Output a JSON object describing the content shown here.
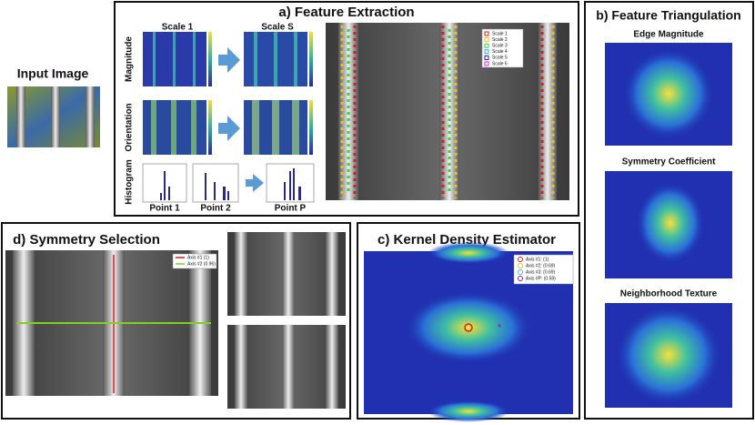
{
  "input": {
    "title": "Input Image"
  },
  "panel_a": {
    "title": "a) Feature Extraction",
    "columns": [
      "Scale 1",
      "Scale S"
    ],
    "rows": [
      "Magnitude",
      "Orientation",
      "Histogram"
    ],
    "points": [
      "Point 1",
      "Point 2",
      "Point P"
    ],
    "legend": [
      "Scale 1",
      "Scale 2",
      "Scale 3",
      "Scale 4",
      "Scale 5",
      "Scale 6"
    ]
  },
  "panel_b": {
    "title": "b) Feature Triangulation",
    "maps": [
      "Edge Magnitude",
      "Symmetry Coefficient",
      "Neighborhood Texture"
    ]
  },
  "panel_c": {
    "title": "c) Kernel Density Estimator",
    "legend": [
      "Axis #1: (1)",
      "Axis #2: (0.69)",
      "Axis #3: (0.69)",
      "Axis #P: (0.59)"
    ]
  },
  "panel_d": {
    "title": "d) Symmetry Selection",
    "legend": [
      "Axis #1 (1)",
      "Axis #2 (0.96)"
    ]
  }
}
